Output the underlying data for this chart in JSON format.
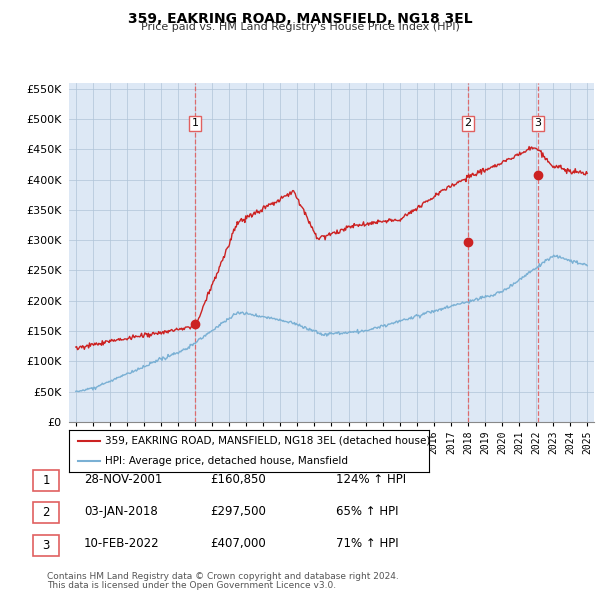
{
  "title": "359, EAKRING ROAD, MANSFIELD, NG18 3EL",
  "subtitle": "Price paid vs. HM Land Registry's House Price Index (HPI)",
  "legend_line1": "359, EAKRING ROAD, MANSFIELD, NG18 3EL (detached house)",
  "legend_line2": "HPI: Average price, detached house, Mansfield",
  "footer1": "Contains HM Land Registry data © Crown copyright and database right 2024.",
  "footer2": "This data is licensed under the Open Government Licence v3.0.",
  "table": [
    {
      "num": "1",
      "date": "28-NOV-2001",
      "price": "£160,850",
      "pct": "124% ↑ HPI"
    },
    {
      "num": "2",
      "date": "03-JAN-2018",
      "price": "£297,500",
      "pct": "65% ↑ HPI"
    },
    {
      "num": "3",
      "date": "10-FEB-2022",
      "price": "£407,000",
      "pct": "71% ↑ HPI"
    }
  ],
  "sale_dates": [
    2002.0,
    2018.01,
    2022.11
  ],
  "sale_prices": [
    160850,
    297500,
    407000
  ],
  "ylim": [
    0,
    560000
  ],
  "xlim_start": 1994.6,
  "xlim_end": 2025.4,
  "red_color": "#cc2222",
  "blue_color": "#7ab0d4",
  "vline_color": "#e06060",
  "bg_color": "#dde8f5",
  "grid_color": "#b0c4d8"
}
